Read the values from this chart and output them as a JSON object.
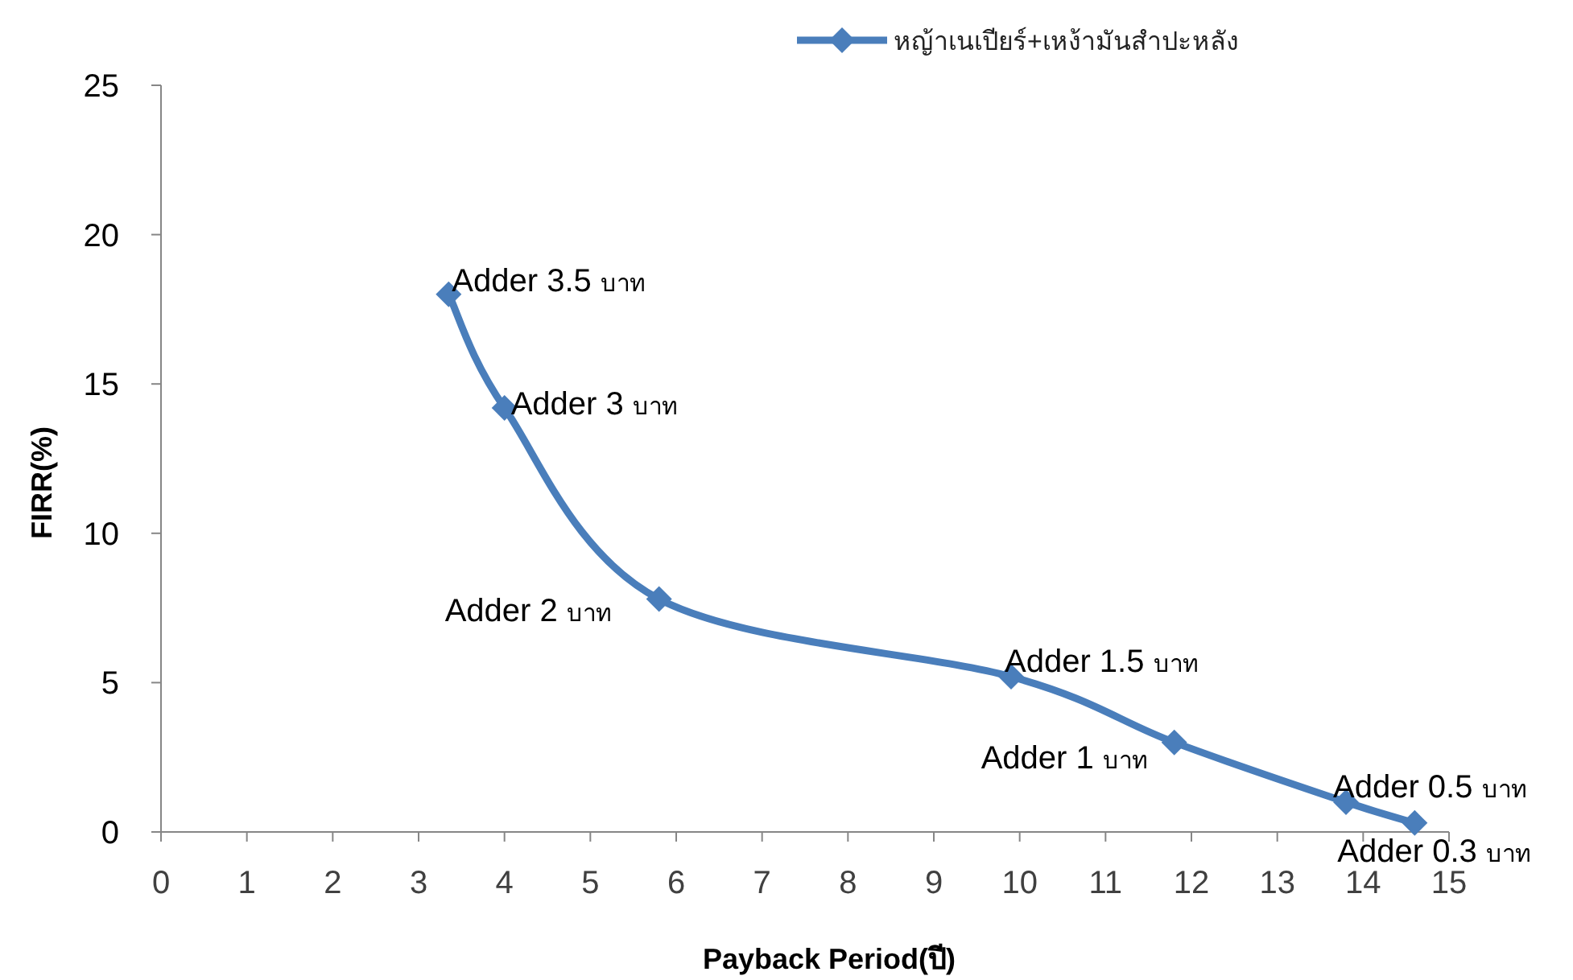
{
  "chart_data": {
    "type": "line",
    "xlabel": "Payback Period(ปี)",
    "ylabel": "FIRR(%)",
    "x": [
      3.35,
      4.0,
      5.8,
      9.9,
      11.8,
      13.8,
      14.6
    ],
    "series": [
      {
        "name": "หญ้าเนเปียร์+เหง้ามันสำปะหลัง",
        "color": "#4a7ebb",
        "values": [
          18.0,
          14.2,
          7.8,
          5.2,
          3.0,
          1.0,
          0.3
        ]
      }
    ],
    "xlim": [
      0,
      15
    ],
    "xticks": [
      0,
      1,
      2,
      3,
      4,
      5,
      6,
      7,
      8,
      9,
      10,
      11,
      12,
      13,
      14,
      15
    ],
    "ylim": [
      0,
      25
    ],
    "yticks": [
      0,
      5,
      10,
      15,
      20,
      25
    ],
    "grid": false,
    "legend": "top",
    "marker": "diamond",
    "line_style": "solid",
    "annotations": [
      {
        "text": "Adder 3.5 บาท",
        "x": 3.35,
        "y": 18.0
      },
      {
        "text": "Adder 3 บาท",
        "x": 4.0,
        "y": 14.2
      },
      {
        "text": "Adder 2 บาท",
        "x": 5.8,
        "y": 7.8
      },
      {
        "text": "Adder 1.5 บาท",
        "x": 9.9,
        "y": 5.2
      },
      {
        "text": "Adder 1 บาท",
        "x": 11.8,
        "y": 3.0
      },
      {
        "text": "Adder 0.5 บาท",
        "x": 13.8,
        "y": 1.0
      },
      {
        "text": "Adder 0.3 บาท",
        "x": 14.6,
        "y": 0.3
      }
    ]
  }
}
